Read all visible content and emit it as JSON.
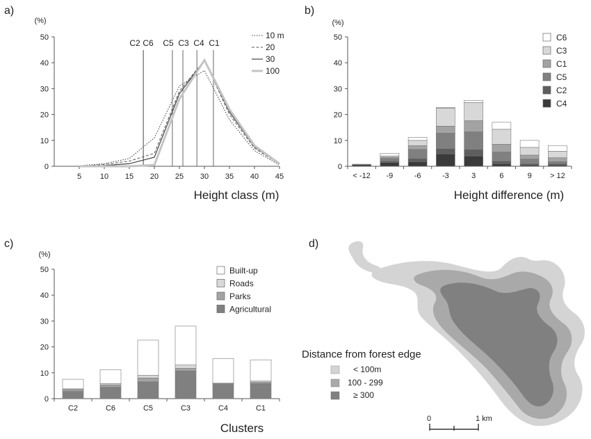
{
  "panels": {
    "a": "a)",
    "b": "b)",
    "c": "c)",
    "d": "d)"
  },
  "chart_data": [
    {
      "id": "a",
      "type": "line",
      "unit_label": "(%)",
      "xlabel": "Height class (m)",
      "x": [
        5,
        10,
        15,
        20,
        25,
        30,
        35,
        40,
        45
      ],
      "ylim": [
        0,
        50
      ],
      "yticks": [
        0,
        10,
        20,
        30,
        40,
        50
      ],
      "series": [
        {
          "name": "10 m",
          "color": "#333333",
          "dash": "1.5,2",
          "width": 1,
          "values": [
            0.2,
            1,
            3,
            11,
            31,
            37,
            18,
            6,
            0.5
          ]
        },
        {
          "name": "20",
          "color": "#555555",
          "dash": "4,2.5",
          "width": 1,
          "values": [
            0,
            0.7,
            2,
            5,
            29,
            41,
            20,
            7,
            0.8
          ]
        },
        {
          "name": "30",
          "color": "#444444",
          "dash": "",
          "width": 1.2,
          "values": [
            0,
            0.3,
            1,
            3.5,
            28,
            41,
            21,
            7.5,
            1
          ]
        },
        {
          "name": "100",
          "color": "#c4c4c4",
          "dash": "",
          "width": 3,
          "values": [
            0,
            0,
            0,
            0.5,
            26,
            41,
            22,
            8,
            1
          ]
        }
      ],
      "vlines": [
        {
          "label": "C2",
          "x": 17.8
        },
        {
          "label": "C6",
          "x": 17.8
        },
        {
          "label": "C5",
          "x": 23.6
        },
        {
          "label": "C3",
          "x": 25.7
        },
        {
          "label": "C4",
          "x": 28.5
        },
        {
          "label": "C1",
          "x": 31.8
        }
      ],
      "vline_labels": "C2 C6 C5 C3 C4 C1"
    },
    {
      "id": "b",
      "type": "bar",
      "stacked": true,
      "unit_label": "(%)",
      "xlabel": "Height difference (m)",
      "categories": [
        "< -12",
        "-9",
        "-6",
        "-3",
        "3",
        "6",
        "9",
        "> 12"
      ],
      "ylim": [
        0,
        50
      ],
      "yticks": [
        0,
        10,
        20,
        30,
        40,
        50
      ],
      "series": [
        {
          "name": "C4",
          "color": "#3a3a3a",
          "values": [
            0.6,
            1.5,
            1.8,
            4.8,
            4.0,
            1.0,
            0.5,
            0.5
          ]
        },
        {
          "name": "C2",
          "color": "#5e5e5e",
          "values": [
            0.1,
            0.5,
            1.2,
            2.0,
            2.5,
            1.0,
            0.5,
            0.5
          ]
        },
        {
          "name": "C5",
          "color": "#808080",
          "values": [
            0.1,
            1.0,
            3.5,
            6.0,
            6.8,
            3.5,
            1.8,
            0.8
          ]
        },
        {
          "name": "C1",
          "color": "#a3a3a3",
          "values": [
            0.0,
            0.5,
            1.5,
            2.7,
            4.3,
            3.0,
            1.5,
            1.5
          ]
        },
        {
          "name": "C3",
          "color": "#d8d8d8",
          "values": [
            0.0,
            0.5,
            2.0,
            7.0,
            7.0,
            5.8,
            3.0,
            2.5
          ]
        },
        {
          "name": "C6",
          "color": "#ffffff",
          "values": [
            0.0,
            1.0,
            1.2,
            0.2,
            0.8,
            2.7,
            2.7,
            2.2
          ]
        }
      ],
      "legend_order": [
        "C6",
        "C3",
        "C1",
        "C5",
        "C2",
        "C4"
      ]
    },
    {
      "id": "c",
      "type": "bar",
      "stacked": true,
      "unit_label": "(%)",
      "xlabel": "Clusters",
      "categories": [
        "C2",
        "C6",
        "C5",
        "C3",
        "C4",
        "C1"
      ],
      "ylim": [
        0,
        50
      ],
      "yticks": [
        0,
        10,
        20,
        30,
        40,
        50
      ],
      "series": [
        {
          "name": "Agricultural",
          "color": "#808080",
          "values": [
            2.8,
            4.4,
            6.5,
            10.7,
            5.5,
            5.8
          ]
        },
        {
          "name": "Parks",
          "color": "#a3a3a3",
          "values": [
            0.7,
            0.9,
            1.5,
            1.0,
            0.3,
            0.6
          ]
        },
        {
          "name": "Roads",
          "color": "#d8d8d8",
          "values": [
            0.3,
            0.5,
            1.0,
            1.3,
            0.2,
            0.4
          ]
        },
        {
          "name": "Built-up",
          "color": "#ffffff",
          "values": [
            3.7,
            5.4,
            13.6,
            15.0,
            9.5,
            8.2
          ]
        }
      ],
      "legend_order": [
        "Built-up",
        "Roads",
        "Parks",
        "Agricultural"
      ]
    }
  ],
  "map": {
    "legend_title": "Distance from forest edge",
    "classes": [
      {
        "label": "< 100m",
        "color": "#d4d4d4"
      },
      {
        "label": "100 - 299",
        "color": "#a9a9a9"
      },
      {
        "label": "≥ 300",
        "color": "#808080"
      }
    ],
    "scale": {
      "start": "0",
      "end": "1 km"
    }
  }
}
